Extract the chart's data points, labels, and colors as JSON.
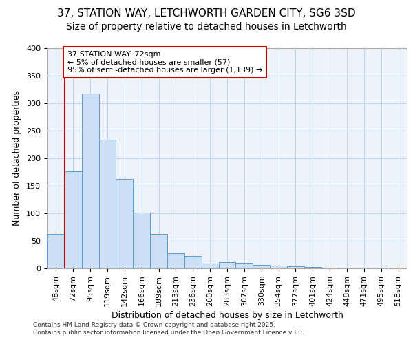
{
  "title_line1": "37, STATION WAY, LETCHWORTH GARDEN CITY, SG6 3SD",
  "title_line2": "Size of property relative to detached houses in Letchworth",
  "xlabel": "Distribution of detached houses by size in Letchworth",
  "ylabel": "Number of detached properties",
  "categories": [
    "48sqm",
    "72sqm",
    "95sqm",
    "119sqm",
    "142sqm",
    "166sqm",
    "189sqm",
    "213sqm",
    "236sqm",
    "260sqm",
    "283sqm",
    "307sqm",
    "330sqm",
    "354sqm",
    "377sqm",
    "401sqm",
    "424sqm",
    "448sqm",
    "471sqm",
    "495sqm",
    "518sqm"
  ],
  "values": [
    63,
    176,
    318,
    234,
    163,
    101,
    62,
    27,
    23,
    9,
    11,
    10,
    6,
    5,
    4,
    2,
    1,
    0,
    0,
    0,
    1
  ],
  "bar_color": "#cddff5",
  "bar_edge_color": "#5b9bd5",
  "annotation_text_line1": "37 STATION WAY: 72sqm",
  "annotation_text_line2": "← 5% of detached houses are smaller (57)",
  "annotation_text_line3": "95% of semi-detached houses are larger (1,139) →",
  "annotation_box_facecolor": "#ffffff",
  "annotation_box_edgecolor": "#cc0000",
  "vline_color": "#cc0000",
  "vline_x_index": 1,
  "plot_bg_color": "#eef3fb",
  "grid_color": "#c5d5eb",
  "fig_bg_color": "#ffffff",
  "ylim": [
    0,
    400
  ],
  "yticks": [
    0,
    50,
    100,
    150,
    200,
    250,
    300,
    350,
    400
  ],
  "title1_fontsize": 11,
  "title2_fontsize": 10,
  "xlabel_fontsize": 9,
  "ylabel_fontsize": 9,
  "tick_fontsize": 8,
  "annot_fontsize": 8,
  "footnote_line1": "Contains HM Land Registry data © Crown copyright and database right 2025.",
  "footnote_line2": "Contains public sector information licensed under the Open Government Licence v3.0.",
  "footnote_fontsize": 6.5
}
